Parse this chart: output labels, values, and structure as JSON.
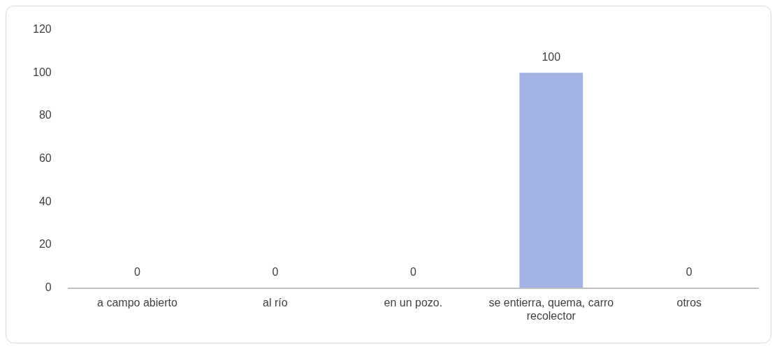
{
  "chart_data": {
    "type": "bar",
    "categories": [
      "a campo abierto",
      "al río",
      "en un pozo.",
      "se entierra, quema, carro recolector",
      "otros"
    ],
    "values": [
      0,
      0,
      0,
      100,
      0
    ],
    "color": "#a3b3e3",
    "ylim": [
      0,
      120
    ],
    "yticks": [
      0,
      20,
      40,
      60,
      80,
      100,
      120
    ],
    "grid": false,
    "legend": false,
    "data_labels": true
  }
}
